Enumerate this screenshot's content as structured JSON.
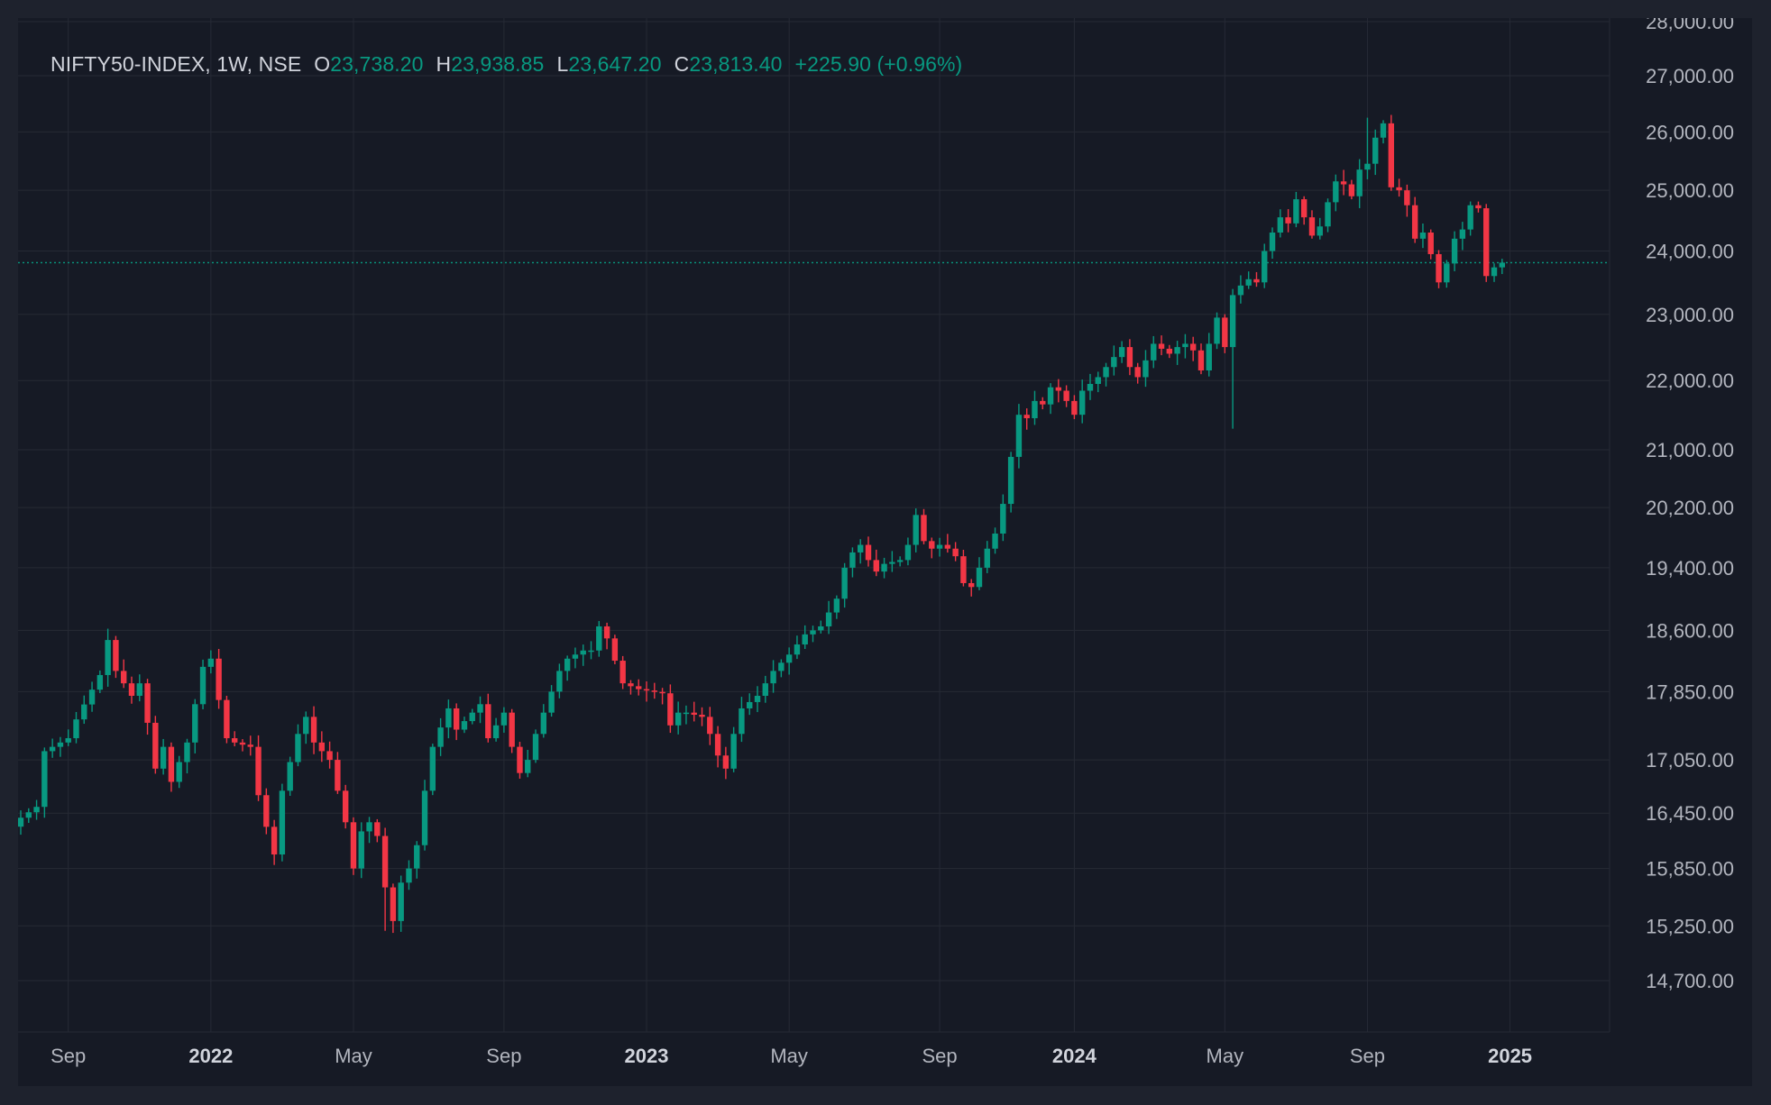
{
  "symbol_label": "NIFTY50-INDEX, 1W, NSE",
  "ohlc": {
    "o_label": "O",
    "o_value": "23,738.20",
    "h_label": "H",
    "h_value": "23,938.85",
    "l_label": "L",
    "l_value": "23,647.20",
    "c_label": "C",
    "c_value": "23,813.40",
    "change": "+225.90 (+0.96%)"
  },
  "colors": {
    "up": "#089981",
    "down": "#f23645",
    "grid": "#262a35",
    "text": "#b2b5be",
    "background": "#161a25"
  },
  "chart_data": {
    "type": "candlestick",
    "interval": "1W",
    "y_scale": "log",
    "ylim": [
      14400,
      28000
    ],
    "y_ticks": [
      {
        "value": 28000,
        "label": "28,000.00"
      },
      {
        "value": 27000,
        "label": "27,000.00"
      },
      {
        "value": 26000,
        "label": "26,000.00"
      },
      {
        "value": 25000,
        "label": "25,000.00"
      },
      {
        "value": 24000,
        "label": "24,000.00"
      },
      {
        "value": 23000,
        "label": "23,000.00"
      },
      {
        "value": 22000,
        "label": "22,000.00"
      },
      {
        "value": 21000,
        "label": "21,000.00"
      },
      {
        "value": 20200,
        "label": "20,200.00"
      },
      {
        "value": 19400,
        "label": "19,400.00"
      },
      {
        "value": 18600,
        "label": "18,600.00"
      },
      {
        "value": 17850,
        "label": "17,850.00"
      },
      {
        "value": 17050,
        "label": "17,050.00"
      },
      {
        "value": 16450,
        "label": "16,450.00"
      },
      {
        "value": 15850,
        "label": "15,850.00"
      },
      {
        "value": 15250,
        "label": "15,250.00"
      },
      {
        "value": 14700,
        "label": "14,700.00"
      }
    ],
    "x_start_week": "2021-07-19",
    "x_ticks": [
      {
        "week": 6,
        "label": "Sep",
        "bold": false
      },
      {
        "week": 24,
        "label": "2022",
        "bold": true
      },
      {
        "week": 42,
        "label": "May",
        "bold": false
      },
      {
        "week": 61,
        "label": "Sep",
        "bold": false
      },
      {
        "week": 79,
        "label": "2023",
        "bold": true
      },
      {
        "week": 97,
        "label": "May",
        "bold": false
      },
      {
        "week": 116,
        "label": "Sep",
        "bold": false
      },
      {
        "week": 133,
        "label": "2024",
        "bold": true
      },
      {
        "week": 152,
        "label": "May",
        "bold": false
      },
      {
        "week": 170,
        "label": "Sep",
        "bold": false
      },
      {
        "week": 188,
        "label": "2025",
        "bold": true
      }
    ],
    "last_price": 23813.4,
    "anchors": [
      [
        0,
        16400
      ],
      [
        2,
        16520
      ],
      [
        3,
        17150
      ],
      [
        6,
        17300
      ],
      [
        7,
        17520
      ],
      [
        10,
        18050
      ],
      [
        11,
        18480
      ],
      [
        12,
        18100
      ],
      [
        14,
        17800
      ],
      [
        15,
        17950
      ],
      [
        16,
        17480
      ],
      [
        17,
        16950
      ],
      [
        18,
        17200
      ],
      [
        19,
        16800
      ],
      [
        21,
        17250
      ],
      [
        22,
        17700
      ],
      [
        23,
        18150
      ],
      [
        24,
        18250
      ],
      [
        25,
        17750
      ],
      [
        26,
        17300
      ],
      [
        27,
        17250
      ],
      [
        29,
        17200
      ],
      [
        30,
        16650
      ],
      [
        31,
        16300
      ],
      [
        32,
        16000
      ],
      [
        33,
        16700
      ],
      [
        35,
        17350
      ],
      [
        36,
        17550
      ],
      [
        37,
        17250
      ],
      [
        39,
        17050
      ],
      [
        41,
        16350
      ],
      [
        42,
        15850
      ],
      [
        43,
        16250
      ],
      [
        44,
        16350
      ],
      [
        45,
        16200
      ],
      [
        46,
        15650
      ],
      [
        47,
        15300
      ],
      [
        48,
        15700
      ],
      [
        49,
        15850
      ],
      [
        50,
        16100
      ],
      [
        51,
        16700
      ],
      [
        52,
        17200
      ],
      [
        54,
        17650
      ],
      [
        55,
        17400
      ],
      [
        57,
        17600
      ],
      [
        58,
        17700
      ],
      [
        59,
        17300
      ],
      [
        61,
        17600
      ],
      [
        62,
        17200
      ],
      [
        63,
        16900
      ],
      [
        64,
        17050
      ],
      [
        65,
        17350
      ],
      [
        66,
        17600
      ],
      [
        67,
        17850
      ],
      [
        68,
        18100
      ],
      [
        69,
        18250
      ],
      [
        71,
        18350
      ],
      [
        72,
        18350
      ],
      [
        73,
        18650
      ],
      [
        74,
        18500
      ],
      [
        76,
        17950
      ],
      [
        78,
        17880
      ],
      [
        81,
        17830
      ],
      [
        82,
        17450
      ],
      [
        83,
        17600
      ],
      [
        84,
        17600
      ],
      [
        86,
        17550
      ],
      [
        87,
        17350
      ],
      [
        88,
        17100
      ],
      [
        89,
        16950
      ],
      [
        90,
        17350
      ],
      [
        91,
        17650
      ],
      [
        93,
        17800
      ],
      [
        95,
        18100
      ],
      [
        97,
        18300
      ],
      [
        99,
        18550
      ],
      [
        101,
        18650
      ],
      [
        103,
        19000
      ],
      [
        104,
        19400
      ],
      [
        105,
        19600
      ],
      [
        106,
        19700
      ],
      [
        107,
        19500
      ],
      [
        108,
        19350
      ],
      [
        109,
        19450
      ],
      [
        111,
        19500
      ],
      [
        112,
        19700
      ],
      [
        113,
        20100
      ],
      [
        114,
        19750
      ],
      [
        115,
        19650
      ],
      [
        116,
        19700
      ],
      [
        117,
        19650
      ],
      [
        118,
        19550
      ],
      [
        119,
        19200
      ],
      [
        120,
        19150
      ],
      [
        121,
        19400
      ],
      [
        122,
        19650
      ],
      [
        123,
        19850
      ],
      [
        124,
        20250
      ],
      [
        125,
        20900
      ],
      [
        126,
        21500
      ],
      [
        127,
        21450
      ],
      [
        128,
        21700
      ],
      [
        129,
        21650
      ],
      [
        130,
        21900
      ],
      [
        131,
        21850
      ],
      [
        132,
        21700
      ],
      [
        133,
        21500
      ],
      [
        134,
        21850
      ],
      [
        135,
        21950
      ],
      [
        136,
        22050
      ],
      [
        137,
        22200
      ],
      [
        138,
        22350
      ],
      [
        139,
        22500
      ],
      [
        140,
        22200
      ],
      [
        141,
        22050
      ],
      [
        142,
        22300
      ],
      [
        143,
        22550
      ],
      [
        145,
        22400
      ],
      [
        146,
        22500
      ],
      [
        147,
        22550
      ],
      [
        148,
        22450
      ],
      [
        149,
        22150
      ],
      [
        150,
        22550
      ],
      [
        151,
        22950
      ],
      [
        152,
        22500
      ],
      [
        153,
        23300
      ],
      [
        154,
        23450
      ],
      [
        155,
        23550
      ],
      [
        156,
        23500
      ],
      [
        157,
        24000
      ],
      [
        158,
        24300
      ],
      [
        159,
        24550
      ],
      [
        160,
        24450
      ],
      [
        161,
        24850
      ],
      [
        162,
        24550
      ],
      [
        163,
        24250
      ],
      [
        164,
        24400
      ],
      [
        165,
        24800
      ],
      [
        166,
        25150
      ],
      [
        167,
        25100
      ],
      [
        168,
        24900
      ],
      [
        169,
        25350
      ],
      [
        170,
        25450
      ],
      [
        171,
        25900
      ],
      [
        172,
        26150
      ],
      [
        173,
        25050
      ],
      [
        174,
        25000
      ],
      [
        175,
        24750
      ],
      [
        176,
        24200
      ],
      [
        177,
        24300
      ],
      [
        178,
        23950
      ],
      [
        179,
        23500
      ],
      [
        180,
        23800
      ],
      [
        181,
        24200
      ],
      [
        182,
        24350
      ],
      [
        183,
        24750
      ],
      [
        184,
        24700
      ],
      [
        185,
        23600
      ],
      [
        186,
        23738.2
      ],
      [
        187,
        23813.4
      ]
    ],
    "big_wicks": [
      {
        "week": 153,
        "low": 21300
      },
      {
        "week": 170,
        "high": 26250
      },
      {
        "week": 46,
        "low": 15200
      }
    ]
  }
}
